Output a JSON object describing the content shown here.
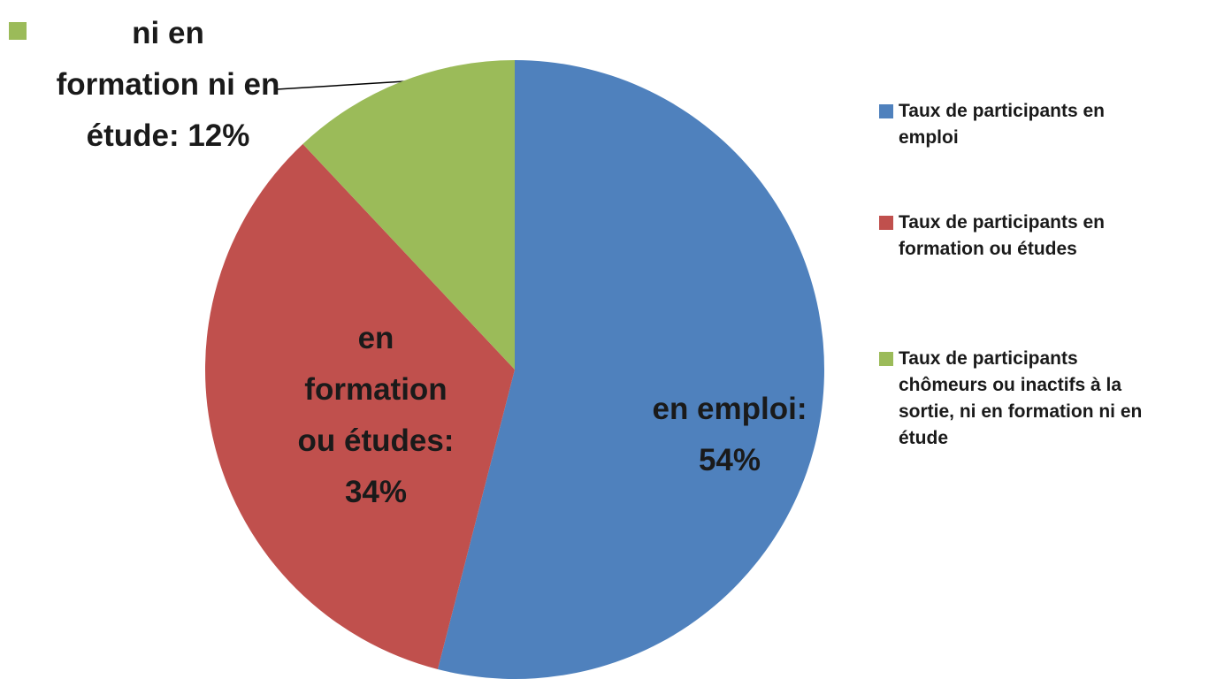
{
  "chart_data": {
    "type": "pie",
    "categories": [
      "Taux de participants en\nemploi",
      "Taux de participants en\nformation ou études",
      "Taux de participants\nchômeurs ou inactifs à la\nsortie, ni en formation ni en\nétude"
    ],
    "values": [
      54,
      34,
      12
    ],
    "value_labels": [
      "en emploi:\n54%",
      "en\nformation\nou études:\n34%",
      "ni en\nformation ni en\nétude: 12%"
    ],
    "colors": [
      "#4f81bd",
      "#c0504d",
      "#9bbb59"
    ],
    "legend": "right"
  }
}
